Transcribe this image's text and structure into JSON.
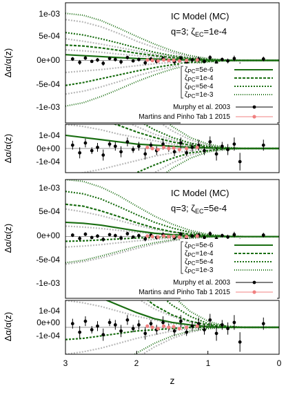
{
  "colors": {
    "green": "#1a6e12",
    "gray": "#b8b8b8",
    "black": "#000000",
    "pink": "#f08080"
  },
  "xlabel": "z",
  "xticks": [
    "3",
    "2",
    "1",
    "0"
  ],
  "ylabel": "Δα/α(z)",
  "legend": {
    "zeta_entries": [
      {
        "prefix": "ζ",
        "sub": "PC",
        "rest": "=5e-6"
      },
      {
        "prefix": "ζ",
        "sub": "PC",
        "rest": "=1e-4"
      },
      {
        "prefix": "ζ",
        "sub": "PC",
        "rest": "=5e-4"
      },
      {
        "prefix": "ζ",
        "sub": "PC",
        "rest": "=1e-3"
      }
    ],
    "data_entries": [
      "Murphy et al. 2003",
      "Martins and Pinho Tab 1 2015"
    ]
  },
  "panels": [
    {
      "title": "IC Model (MC)",
      "q_label": "q=3;",
      "zeta_prefix": "ζ",
      "zeta_sub": "EC",
      "zeta_value": "=1e-4",
      "main_yticks": [
        "1e-03",
        "5e-04",
        "0e+00",
        "-5e-04",
        "-1e-03"
      ],
      "zoom_yticks": [
        "1e-04",
        "0e+00",
        "-1e-04"
      ]
    },
    {
      "title": "IC Model (MC)",
      "q_label": "q=3;",
      "zeta_prefix": "ζ",
      "zeta_sub": "EC",
      "zeta_value": "=5e-4",
      "main_yticks": [
        "1e-03",
        "5e-04",
        "0e+00",
        "-5e-04",
        "-1e-03"
      ],
      "zoom_yticks": [
        "1e-04",
        "0e+00",
        "-1e-04"
      ]
    }
  ],
  "chart_data": {
    "type": "line",
    "xlabel": "z",
    "ylabel": "Δα/α(z)",
    "x_axis": {
      "range": [
        3,
        0
      ],
      "reversed": true
    },
    "main_ylim": [
      -0.0013,
      0.0012
    ],
    "zoom_ylim": [
      -0.00022,
      0.00022
    ],
    "curve_z": [
      3.0,
      2.75,
      2.5,
      2.25,
      2.0,
      1.75,
      1.5,
      1.25,
      1.0,
      0.75,
      0.5,
      0.25,
      0.0
    ],
    "panels": [
      {
        "zeta_EC": "1e-4",
        "green_curves": [
          {
            "zeta_PC": "5e-6",
            "values": [
              0.00012,
              0.0001,
              8e-05,
              6e-05,
              4e-05,
              3e-05,
              2e-05,
              1e-05,
              5e-06,
              0.0,
              0.0,
              0.0,
              0.0
            ]
          },
          {
            "zeta_PC": "1e-4",
            "values": [
              0.00032,
              0.0003,
              0.00026,
              0.00021,
              0.00015,
              0.0001,
              6e-05,
              3e-05,
              1e-05,
              0.0,
              0.0,
              0.0,
              0.0
            ]
          },
          {
            "zeta_PC": "5e-4",
            "values": [
              0.00058,
              0.00053,
              0.00045,
              0.00036,
              0.00026,
              0.00017,
              0.0001,
              5e-05,
              2e-05,
              5e-06,
              0.0,
              0.0,
              0.0
            ]
          },
          {
            "zeta_PC": "1e-3",
            "values": [
              0.00098,
              0.00094,
              0.00083,
              0.00067,
              0.0005,
              0.00034,
              0.0002,
              0.0001,
              4e-05,
              1e-05,
              0.0,
              0.0,
              0.0
            ]
          },
          {
            "zeta_PC": "5e-4",
            "values": [
              -0.00052,
              -0.00046,
              -0.00038,
              -0.0003,
              -0.00022,
              -0.00015,
              -9e-05,
              -4e-05,
              -2e-05,
              0.0,
              0.0,
              0.0,
              0.0
            ]
          },
          {
            "zeta_PC": "1e-3",
            "values": [
              -0.00095,
              -0.00088,
              -0.00075,
              -0.0006,
              -0.00044,
              -0.0003,
              -0.00018,
              -9e-05,
              -3e-05,
              -1e-05,
              0.0,
              0.0,
              0.0
            ]
          }
        ],
        "gray_curves": [
          [
            0.00085,
            0.0008,
            0.0007,
            0.00056,
            0.0004,
            0.00027,
            0.00016,
            8e-05,
            3e-05,
            0.0,
            0.0,
            0.0,
            0.0
          ],
          [
            0.00045,
            0.0004,
            0.00034,
            0.00027,
            0.0002,
            0.00013,
            8e-05,
            4e-05,
            1e-05,
            0.0,
            0.0,
            0.0,
            0.0
          ],
          [
            0.00022,
            0.0002,
            0.00017,
            0.00013,
            0.0001,
            7e-05,
            4e-05,
            2e-05,
            0.0,
            0.0,
            0.0,
            0.0,
            0.0
          ],
          [
            -0.00025,
            -0.00022,
            -0.00019,
            -0.00015,
            -0.00011,
            -7e-05,
            -4e-05,
            -2e-05,
            0.0,
            0.0,
            0.0,
            0.0,
            0.0
          ],
          [
            -0.0007,
            -0.00064,
            -0.00055,
            -0.00044,
            -0.00032,
            -0.00022,
            -0.00013,
            -6e-05,
            -2e-05,
            0.0,
            0.0,
            0.0,
            0.0
          ]
        ]
      },
      {
        "zeta_EC": "5e-4",
        "green_curves": [
          {
            "zeta_PC": "5e-6",
            "values": [
              0.0003,
              0.00028,
              0.00024,
              0.00018,
              0.00012,
              7e-05,
              4e-05,
              2e-05,
              5e-06,
              0.0,
              0.0,
              0.0,
              0.0
            ]
          },
          {
            "zeta_PC": "1e-4",
            "values": [
              0.00068,
              0.00064,
              0.00054,
              0.00042,
              0.00029,
              0.00018,
              0.0001,
              5e-05,
              2e-05,
              0.0,
              0.0,
              0.0,
              0.0
            ]
          },
          {
            "zeta_PC": "5e-4",
            "values": [
              0.00095,
              0.0009,
              0.00079,
              0.00063,
              0.00046,
              0.0003,
              0.00018,
              9e-05,
              3e-05,
              1e-05,
              0.0,
              0.0,
              0.0
            ]
          },
          {
            "zeta_PC": "1e-3",
            "values": [
              0.0012,
              0.00116,
              0.00104,
              0.00086,
              0.00064,
              0.00043,
              0.00026,
              0.00013,
              5e-05,
              1e-05,
              0.0,
              0.0,
              0.0
            ]
          },
          {
            "zeta_PC": "1e-4",
            "values": [
              -0.0001,
              -9e-05,
              -7e-05,
              -5e-05,
              -3e-05,
              -2e-05,
              -1e-05,
              0.0,
              0.0,
              0.0,
              0.0,
              0.0,
              0.0
            ]
          },
          {
            "zeta_PC": "1e-3",
            "values": [
              -0.00055,
              -0.0005,
              -0.00041,
              -0.00031,
              -0.00021,
              -0.00013,
              -7e-05,
              -3e-05,
              -1e-05,
              0.0,
              0.0,
              0.0,
              0.0
            ]
          }
        ],
        "gray_curves": [
          [
            0.00058,
            0.00052,
            0.00044,
            0.00034,
            0.00024,
            0.00015,
            9e-05,
            4e-05,
            1e-05,
            0.0,
            0.0,
            0.0,
            0.0
          ],
          [
            0.00022,
            0.0002,
            0.00017,
            0.00013,
            9e-05,
            6e-05,
            3e-05,
            1e-05,
            0.0,
            0.0,
            0.0,
            0.0,
            0.0
          ],
          [
            -0.00022,
            -0.0002,
            -0.00017,
            -0.00013,
            -9e-05,
            -6e-05,
            -3e-05,
            -1e-05,
            0.0,
            0.0,
            0.0,
            0.0,
            0.0
          ],
          [
            -0.00058,
            -0.00053,
            -0.00045,
            -0.00035,
            -0.00025,
            -0.00016,
            -9e-05,
            -4e-05,
            -1e-05,
            0.0,
            0.0,
            0.0,
            0.0
          ]
        ]
      }
    ],
    "murphy_2003": {
      "z": [
        2.9,
        2.8,
        2.72,
        2.63,
        2.55,
        2.47,
        2.38,
        2.3,
        2.22,
        2.13,
        2.05,
        1.97,
        1.88,
        1.8,
        1.72,
        1.63,
        1.55,
        1.47,
        1.38,
        1.3,
        1.22,
        1.13,
        1.05,
        0.97,
        0.88,
        0.8,
        0.72,
        0.63,
        0.55,
        0.22
      ],
      "values": [
        3e-05,
        -4e-05,
        5e-05,
        -2e-05,
        1e-05,
        -6e-05,
        4e-05,
        2e-05,
        -3e-05,
        6e-05,
        -1e-05,
        2e-05,
        -5e-05,
        3e-05,
        -2e-05,
        4e-05,
        0.0,
        -3e-05,
        5e-05,
        -4e-05,
        1e-05,
        3e-05,
        -2e-05,
        6e-05,
        -5e-05,
        2e-05,
        -1e-05,
        4e-05,
        -0.00012,
        3e-05
      ],
      "errors": [
        4e-05,
        5e-05,
        4e-05,
        3e-05,
        4e-05,
        5e-05,
        3e-05,
        4e-05,
        5e-05,
        4e-05,
        3e-05,
        4e-05,
        5e-05,
        3e-05,
        4e-05,
        5e-05,
        3e-05,
        4e-05,
        5e-05,
        3e-05,
        4e-05,
        5e-05,
        4e-05,
        5e-05,
        6e-05,
        4e-05,
        5e-05,
        6e-05,
        8e-05,
        5e-05
      ]
    },
    "martins_pinho_2015": {
      "z": [
        1.85,
        1.78,
        1.7,
        1.62,
        1.55,
        1.48,
        1.4,
        1.3,
        1.15
      ],
      "values": [
        1e-05,
        0.0,
        -1e-05,
        1e-05,
        0.0,
        5e-06,
        -1e-05,
        0.0,
        1e-05
      ],
      "errors": [
        8e-06,
        8e-06,
        8e-06,
        8e-06,
        8e-06,
        8e-06,
        8e-06,
        8e-06,
        8e-06
      ]
    }
  }
}
